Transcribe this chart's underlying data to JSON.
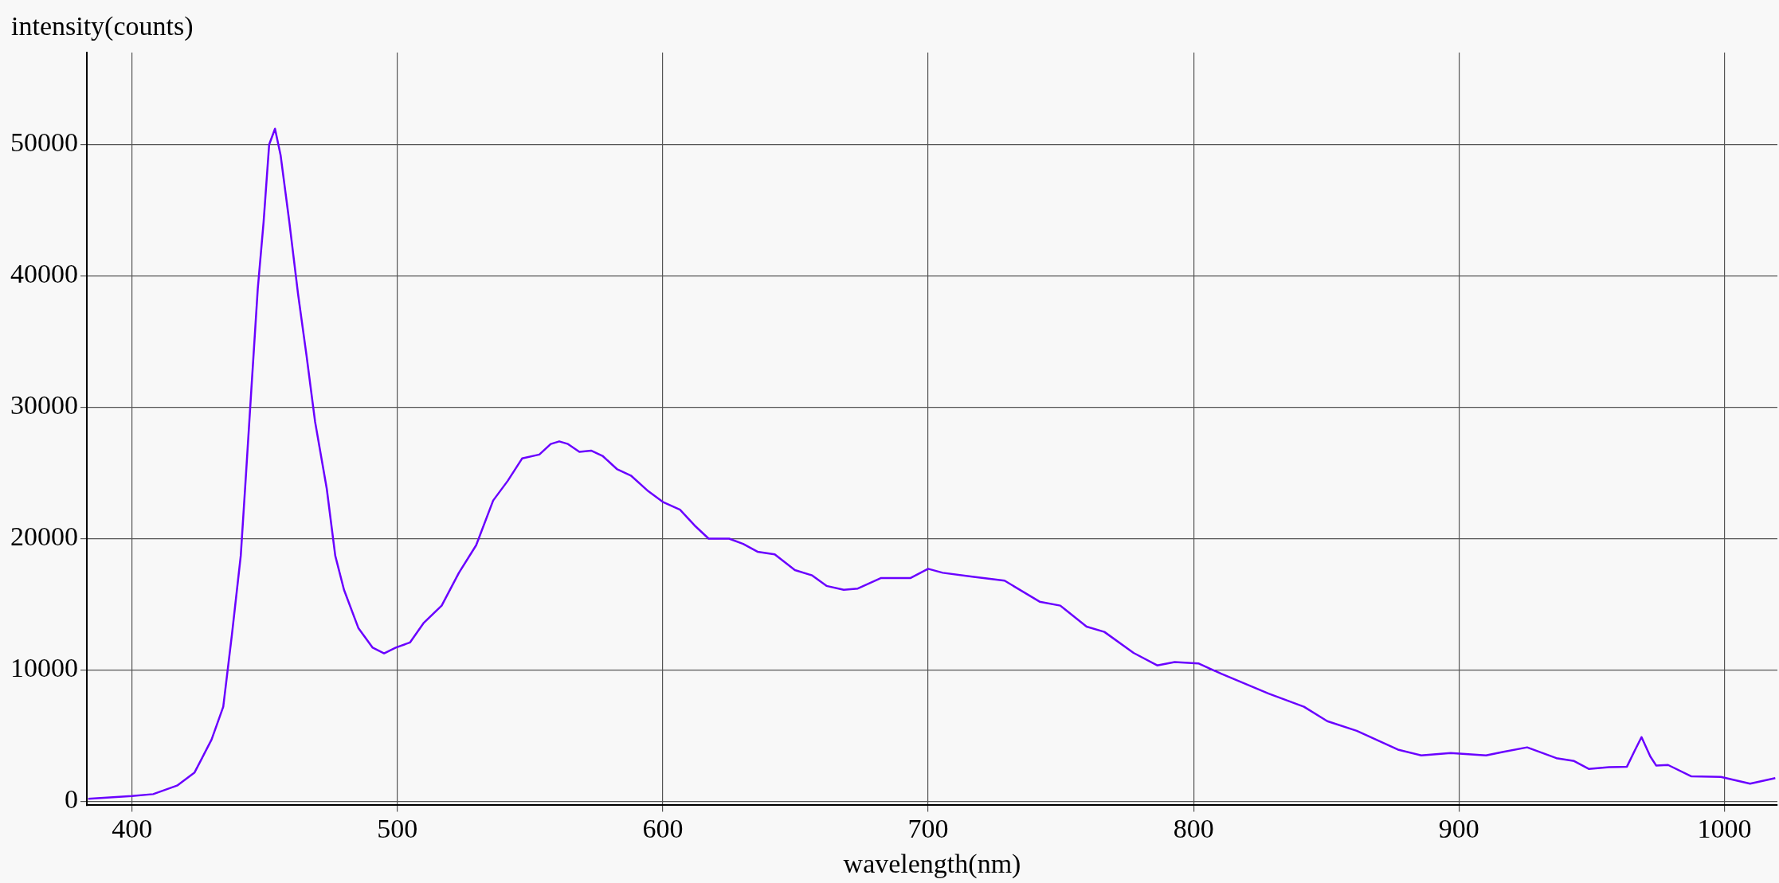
{
  "chart_data": {
    "type": "line",
    "xlabel": "wavelength(nm)",
    "ylabel": "intensity(counts)",
    "xlim": [
      383,
      1020
    ],
    "xticks": [
      400,
      500,
      600,
      700,
      800,
      900,
      1000
    ],
    "ylim": [
      -300,
      57000
    ],
    "yticks": [
      0,
      10000,
      20000,
      30000,
      40000,
      50000
    ],
    "grid": true,
    "marker": "none",
    "line_style": "solid",
    "series": [
      {
        "color": "#6a00ff",
        "x": [
          383.5,
          400,
          408,
          417,
          423.6,
          430,
          434.4,
          437.7,
          441,
          443,
          445,
          447.4,
          449.6,
          451.7,
          453.9,
          456,
          459.3,
          462.6,
          465.8,
          469,
          473.4,
          476.6,
          479.9,
          485.3,
          490.7,
          495,
          499.4,
          504.8,
          510,
          516.7,
          523.2,
          529.7,
          536.1,
          541.6,
          547,
          553.5,
          557.8,
          561,
          564.3,
          568.6,
          573,
          577.3,
          582.7,
          588,
          594.6,
          600,
          606.5,
          612,
          617.3,
          625,
          630.3,
          635.7,
          642.2,
          649.8,
          656.3,
          661.7,
          668.2,
          673.5,
          682.3,
          693.4,
          700,
          705.5,
          716.6,
          728.8,
          742,
          749.8,
          759.7,
          766.4,
          777.4,
          786.3,
          792.9,
          801.8,
          810.6,
          828.3,
          841.6,
          850.4,
          861.5,
          877,
          885.8,
          896.9,
          910.2,
          916.8,
          925.7,
          936.7,
          943.4,
          948.9,
          956.6,
          963.3,
          966.2,
          968.8,
          972.1,
          974.3,
          978.8,
          987.6,
          998.7,
          1009.7,
          1019.2
        ],
        "values": [
          200,
          400,
          550,
          1200,
          2200,
          4700,
          7200,
          12750,
          18700,
          25000,
          31400,
          39000,
          44100,
          50000,
          51200,
          49200,
          44100,
          38600,
          33900,
          28900,
          23800,
          18700,
          16100,
          13200,
          11700,
          11270,
          11700,
          12100,
          13600,
          14900,
          17400,
          19500,
          22900,
          24400,
          26100,
          26400,
          27200,
          27400,
          27200,
          26600,
          26700,
          26300,
          25300,
          24800,
          23600,
          22800,
          22200,
          21000,
          20000,
          20000,
          19600,
          19000,
          18800,
          17600,
          17200,
          16400,
          16100,
          16200,
          17000,
          17000,
          17700,
          17400,
          17100,
          16800,
          15200,
          14900,
          13300,
          12900,
          11300,
          10350,
          10600,
          10500,
          9700,
          8200,
          7200,
          6100,
          5370,
          3940,
          3500,
          3680,
          3500,
          3770,
          4110,
          3290,
          3070,
          2470,
          2600,
          2640,
          3850,
          4890,
          3420,
          2730,
          2770,
          1900,
          1860,
          1340,
          1770
        ]
      }
    ]
  }
}
